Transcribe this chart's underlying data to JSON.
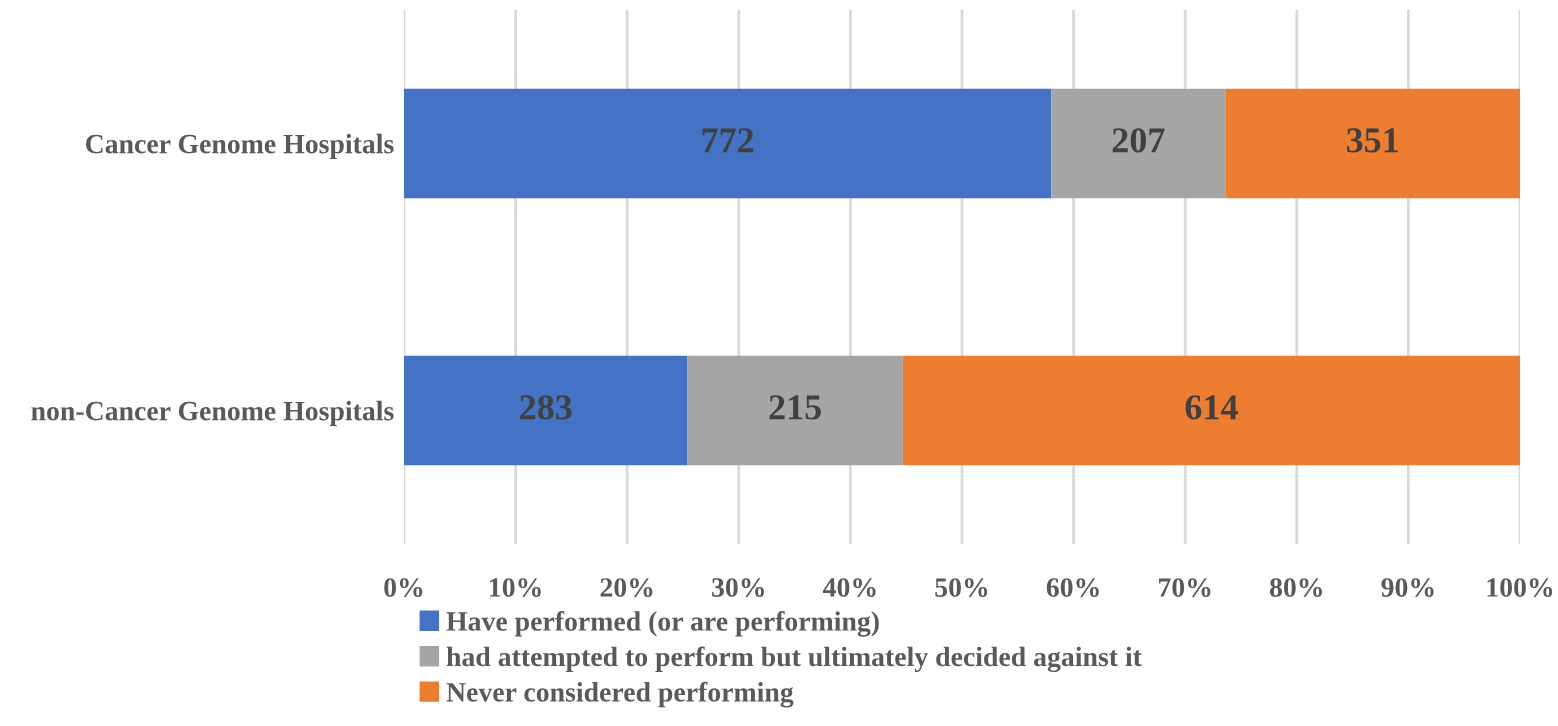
{
  "chart_data": {
    "type": "bar",
    "orientation": "horizontal",
    "stacked": true,
    "categories": [
      "Cancer Genome Hospitals",
      "non-Cancer Genome Hospitals"
    ],
    "series": [
      {
        "name": "Have performed (or are performing)",
        "color": "#4472c4",
        "values": [
          58.0,
          25.4
        ]
      },
      {
        "name": "had attempted to perform but ultimately decided against it",
        "color": "#a5a5a5",
        "values": [
          15.6,
          19.3
        ]
      },
      {
        "name": "Never considered performing",
        "color": "#ed7d31",
        "values": [
          26.4,
          55.3
        ]
      }
    ],
    "annotations": [
      "772",
      "207",
      "351",
      "283",
      "215",
      "614"
    ],
    "xlim": [
      0,
      100
    ],
    "xticks": [
      {
        "value": 0,
        "label": "0%"
      },
      {
        "value": 10,
        "label": "10%"
      },
      {
        "value": 20,
        "label": "20%"
      },
      {
        "value": 30,
        "label": "30%"
      },
      {
        "value": 40,
        "label": "40%"
      },
      {
        "value": 50,
        "label": "50%"
      },
      {
        "value": 60,
        "label": "60%"
      },
      {
        "value": 70,
        "label": "70%"
      },
      {
        "value": 80,
        "label": "80%"
      },
      {
        "value": 90,
        "label": "90%"
      },
      {
        "value": 100,
        "label": "100%"
      }
    ],
    "grid": "x",
    "legend": "bottom"
  }
}
